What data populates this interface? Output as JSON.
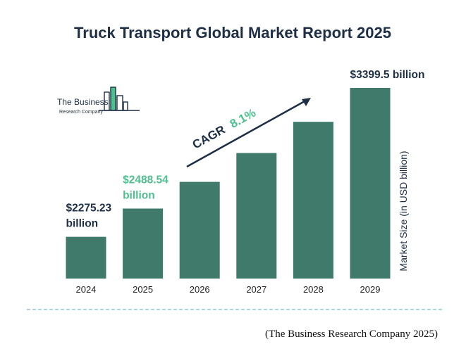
{
  "colors": {
    "bar": "#3f7a6a",
    "title": "#1e2f45",
    "highlight": "#4fbf8f",
    "dark": "#1e2f45",
    "divider": "#7fb3c9"
  },
  "logo": {
    "line1": "The Business",
    "line2": "Research Company",
    "icon": "building-bars-logo"
  },
  "annotations": {
    "cagr_label": "CAGR",
    "cagr_value": "8.1%",
    "source": "(The Business Research Company 2025)"
  },
  "chart_data": {
    "type": "bar",
    "title": "Truck Transport Global Market Report 2025",
    "xlabel": "",
    "ylabel": "Market Size (in USD billion)",
    "categories": [
      "2024",
      "2025",
      "2026",
      "2027",
      "2028",
      "2029"
    ],
    "values": [
      2275.23,
      2488.54,
      2690.1,
      2908.0,
      3143.5,
      3399.5
    ],
    "ylim": [
      1960,
      3440
    ],
    "grid": false,
    "data_labels": [
      {
        "index": 0,
        "lines": [
          "$2275.23",
          "billion"
        ],
        "tone": "dark"
      },
      {
        "index": 1,
        "lines": [
          "$2488.54",
          "billion"
        ],
        "tone": "highlight"
      },
      {
        "index": 5,
        "lines": [
          "$3399.5 billion"
        ],
        "tone": "dark"
      }
    ]
  }
}
